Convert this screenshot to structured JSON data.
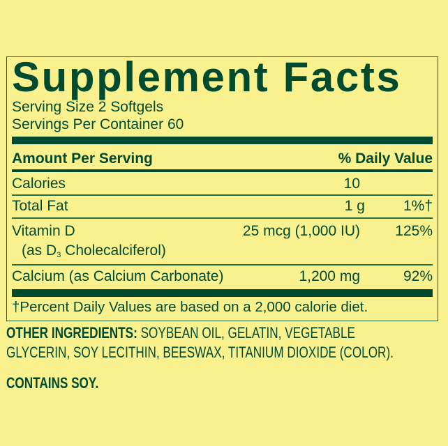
{
  "title": "Supplement Facts",
  "serving_size": "Serving Size 2 Softgels",
  "servings_per_container": "Servings Per Container 60",
  "header": {
    "amount": "Amount Per Serving",
    "dv": "% Daily Value"
  },
  "rows": [
    {
      "name": "Calories",
      "amount": "10",
      "dv": ""
    },
    {
      "name": "Total Fat",
      "amount": "1 g",
      "dv": "1%†"
    },
    {
      "name": "Vitamin D",
      "sub_prefix": "(as D",
      "sub_script": "3",
      "sub_suffix": " Cholecalciferol)",
      "amount": "25 mcg (1,000 IU)",
      "dv": "125%"
    },
    {
      "name": "Calcium (as Calcium Carbonate)",
      "amount": "1,200 mg",
      "dv": "92%"
    }
  ],
  "footnote": "†Percent Daily Values are based on a 2,000 calorie diet.",
  "other_ingredients": {
    "label": "OTHER INGREDIENTS:",
    "line1": " SOYBEAN OIL, GELATIN, VEGETABLE",
    "line2": "GLYCERIN, SOY LECITHIN, BEESWAX, TITANIUM DIOXIDE (COLOR)."
  },
  "allergen": "CONTAINS SOY.",
  "colors": {
    "background": "#f8f18e",
    "ink": "#004a30"
  }
}
